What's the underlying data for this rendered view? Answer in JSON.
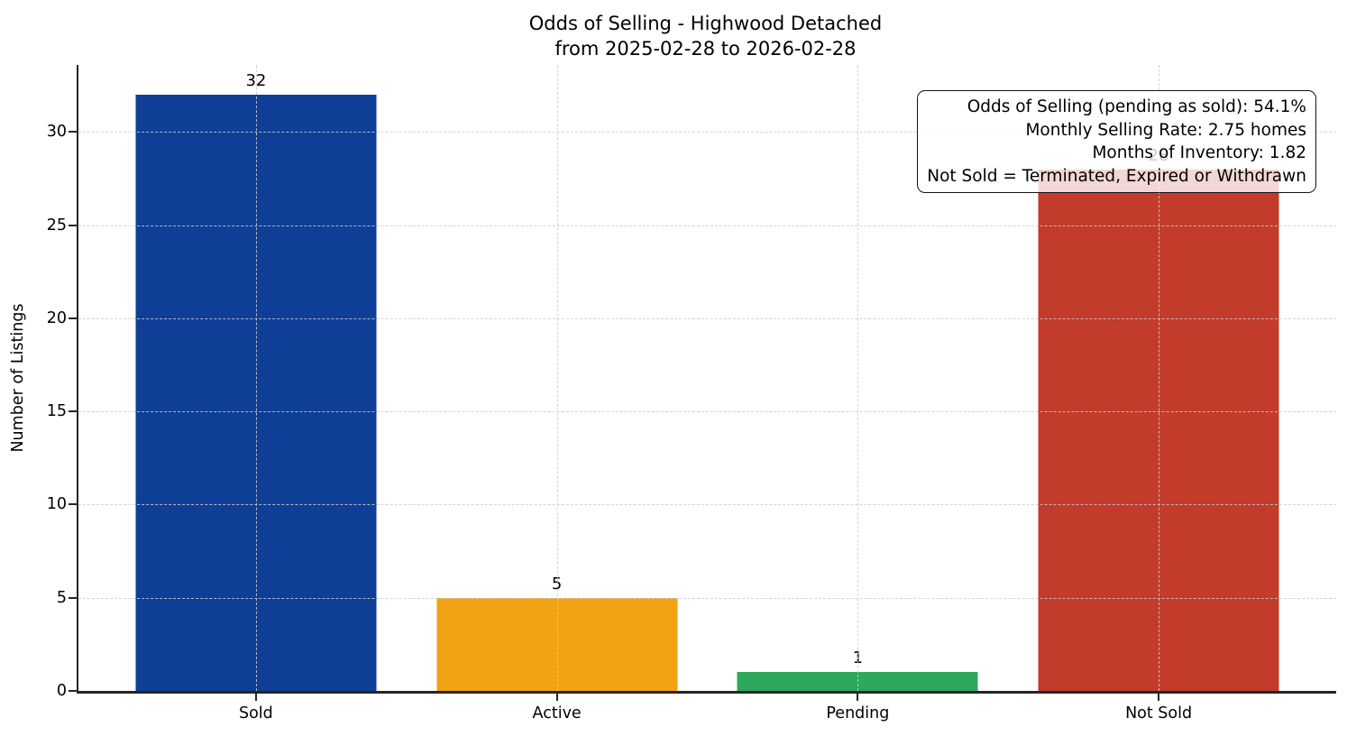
{
  "chart_data": {
    "type": "bar",
    "title": "Odds of Selling - Highwood Detached",
    "subtitle": "from 2025-02-28 to 2026-02-28",
    "xlabel": "",
    "ylabel": "Number of Listings",
    "categories": [
      "Sold",
      "Active",
      "Pending",
      "Not Sold"
    ],
    "values": [
      32,
      5,
      1,
      28
    ],
    "colors": [
      "#0f3e96",
      "#f1a313",
      "#2ea85c",
      "#c23b2b"
    ],
    "yticks": [
      0,
      5,
      10,
      15,
      20,
      25,
      30
    ],
    "ylim": [
      0,
      33.6
    ],
    "xlim": [
      -0.59,
      3.59
    ],
    "bar_width": 0.8,
    "grid": "dashed, both axes, drawn over bars",
    "legend_position": "none",
    "annotation": {
      "position": "top-right",
      "lines": [
        "Odds of Selling (pending as sold): 54.1%",
        "Monthly Selling Rate: 2.75 homes",
        "Months of Inventory: 1.82",
        "Not Sold = Terminated, Expired or Withdrawn"
      ]
    }
  }
}
